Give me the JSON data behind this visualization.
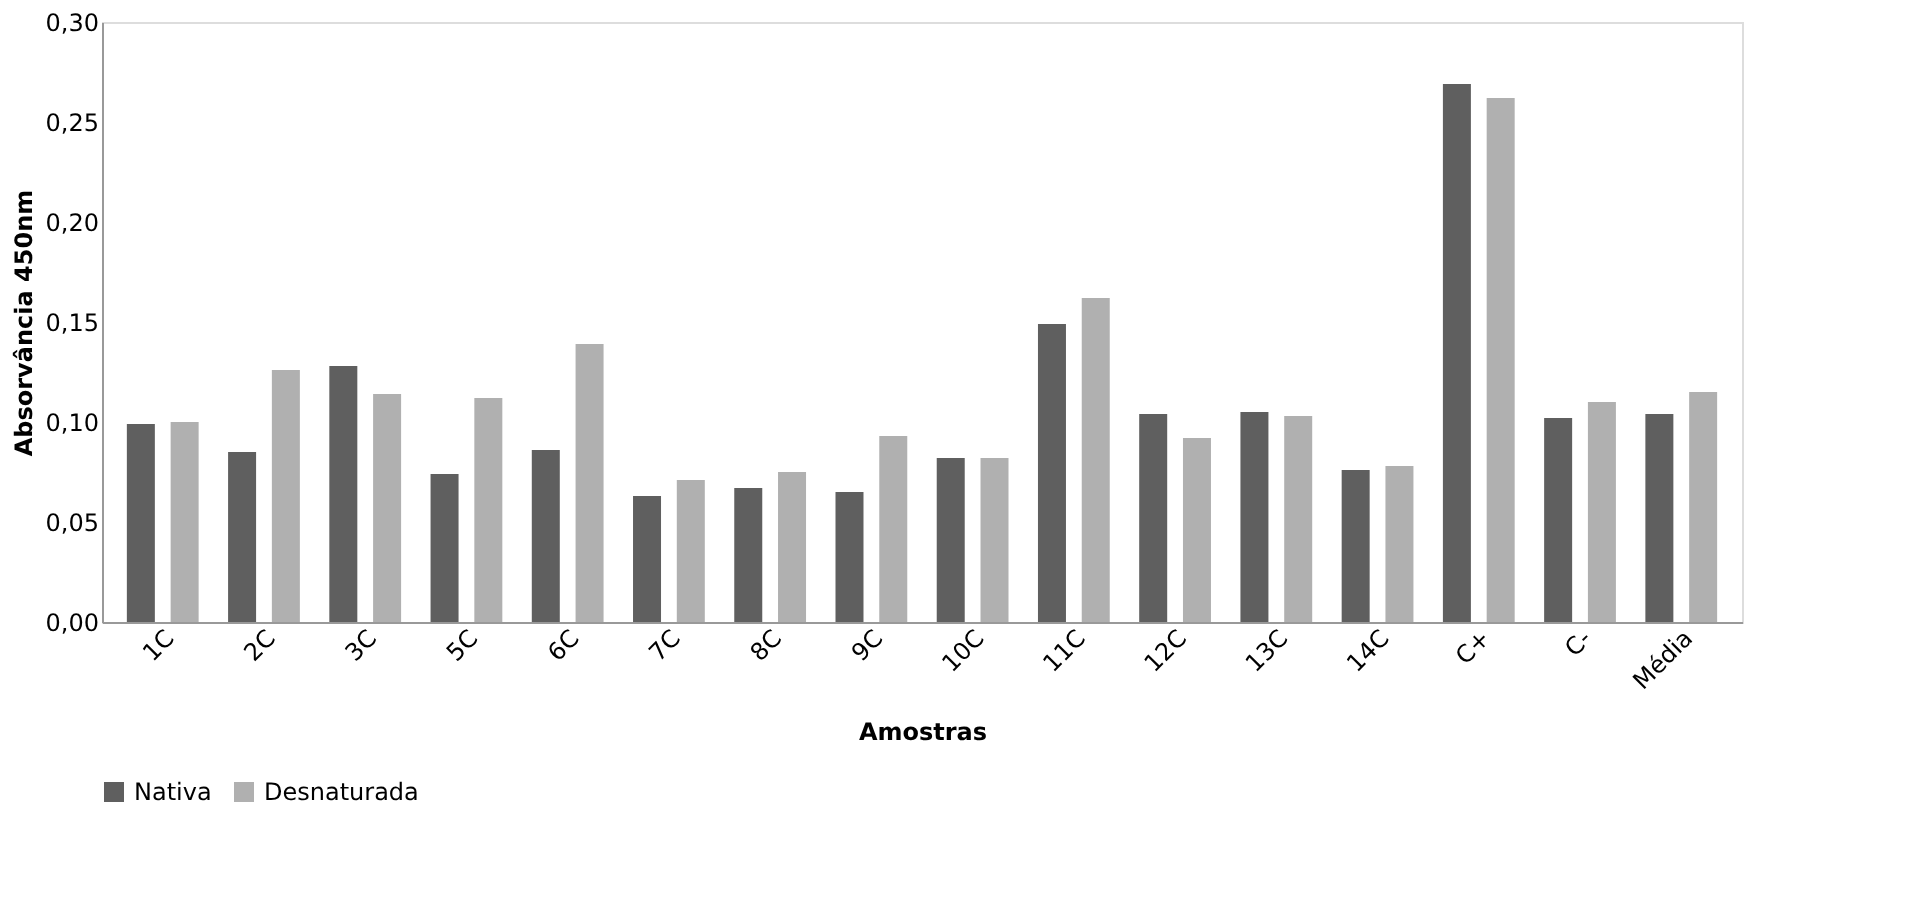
{
  "chart_data": {
    "type": "bar",
    "xlabel": "Amostras",
    "ylabel": "Absorvância 450nm",
    "categories": [
      "1C",
      "2C",
      "3C",
      "5C",
      "6C",
      "7C",
      "8C",
      "9C",
      "10C",
      "11C",
      "12C",
      "13C",
      "14C",
      "C+",
      "C-",
      "Média"
    ],
    "series": [
      {
        "name": "Nativa",
        "color": "#5f5f5f",
        "values": [
          0.099,
          0.085,
          0.128,
          0.074,
          0.086,
          0.063,
          0.067,
          0.065,
          0.082,
          0.149,
          0.104,
          0.105,
          0.076,
          0.269,
          0.102,
          0.104
        ]
      },
      {
        "name": "Desnaturada",
        "color": "#b0b0b0",
        "values": [
          0.1,
          0.126,
          0.114,
          0.112,
          0.139,
          0.071,
          0.075,
          0.093,
          0.082,
          0.162,
          0.092,
          0.103,
          0.078,
          0.262,
          0.11,
          0.115
        ]
      }
    ],
    "ylim": [
      0,
      0.3
    ],
    "yticks": [
      {
        "value": 0,
        "label": "0,00"
      },
      {
        "value": 0.05,
        "label": "0,05"
      },
      {
        "value": 0.1,
        "label": "0,10"
      },
      {
        "value": 0.15,
        "label": "0,15"
      },
      {
        "value": 0.2,
        "label": "0,20"
      },
      {
        "value": 0.25,
        "label": "0,25"
      },
      {
        "value": 0.3,
        "label": "0,30"
      }
    ],
    "grid": false,
    "legend": "bottom"
  }
}
